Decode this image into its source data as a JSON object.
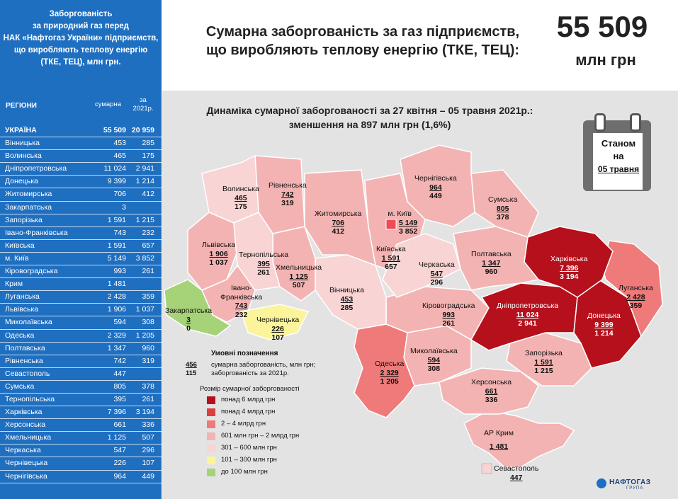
{
  "sidebar": {
    "title_lines": [
      "Заборгованість",
      "за природний газ перед",
      "НАК «Нафтогаз України» підприємств,",
      "що виробляють теплову енергію",
      "(ТКЕ, ТЕЦ), млн грн."
    ],
    "col_region": "РЕГІОНИ",
    "col_total": "сумарна",
    "col_year": [
      "за",
      "2021р."
    ],
    "rows": [
      {
        "region": "УКРАЇНА",
        "total": "55 509",
        "year": "20 959",
        "bold": true
      },
      {
        "region": "Вінницька",
        "total": "453",
        "year": "285"
      },
      {
        "region": "Волинська",
        "total": "465",
        "year": "175"
      },
      {
        "region": "Дніпропетровська",
        "total": "11 024",
        "year": "2 941"
      },
      {
        "region": "Донецька",
        "total": "9 399",
        "year": "1 214"
      },
      {
        "region": "Житомирська",
        "total": "706",
        "year": "412"
      },
      {
        "region": "Закарпатська",
        "total": "3",
        "year": ""
      },
      {
        "region": "Запорізька",
        "total": "1 591",
        "year": "1 215"
      },
      {
        "region": "Івано-Франківська",
        "total": "743",
        "year": "232"
      },
      {
        "region": "Київська",
        "total": "1 591",
        "year": "657"
      },
      {
        "region": "м. Київ",
        "total": "5 149",
        "year": "3 852"
      },
      {
        "region": "Кіровоградська",
        "total": "993",
        "year": "261"
      },
      {
        "region": "Крим",
        "total": "1 481",
        "year": ""
      },
      {
        "region": "Луганська",
        "total": "2 428",
        "year": "359"
      },
      {
        "region": "Львівська",
        "total": "1 906",
        "year": "1 037"
      },
      {
        "region": "Миколаївська",
        "total": "594",
        "year": "308"
      },
      {
        "region": "Одеська",
        "total": "2 329",
        "year": "1 205"
      },
      {
        "region": "Полтавська",
        "total": "1 347",
        "year": "960"
      },
      {
        "region": "Рівненська",
        "total": "742",
        "year": "319"
      },
      {
        "region": "Севастополь",
        "total": "447",
        "year": ""
      },
      {
        "region": "Сумська",
        "total": "805",
        "year": "378"
      },
      {
        "region": "Тернопільська",
        "total": "395",
        "year": "261"
      },
      {
        "region": "Харківська",
        "total": "7 396",
        "year": "3 194"
      },
      {
        "region": "Херсонська",
        "total": "661",
        "year": "336"
      },
      {
        "region": "Хмельницька",
        "total": "1 125",
        "year": "507"
      },
      {
        "region": "Черкаська",
        "total": "547",
        "year": "296"
      },
      {
        "region": "Чернівецька",
        "total": "226",
        "year": "107"
      },
      {
        "region": "Чернігівська",
        "total": "964",
        "year": "449"
      }
    ]
  },
  "header": {
    "title_line1": "Сумарна заборгованість за газ підприємств,",
    "title_line2": "що виробляють теплову енергію (ТКЕ, ТЕЦ):",
    "total_value": "55 509",
    "total_unit": "млн грн"
  },
  "map": {
    "subtitle_line1": "Динаміка сумарної заборгованості за 27 квітня – 05 травня 2021р.:",
    "subtitle_line2": "зменшення на 897 млн грн (1,6%)",
    "calendar": {
      "line1": "Станом",
      "line2": "на",
      "date": "05 травня"
    },
    "labels": [
      {
        "id": "volyn",
        "name": "Волинська",
        "total": "465",
        "year": "175"
      },
      {
        "id": "rivne",
        "name": "Рівненська",
        "total": "742",
        "year": "319"
      },
      {
        "id": "zhytomyr",
        "name": "Житомирська",
        "total": "706",
        "year": "412"
      },
      {
        "id": "kyiv-city",
        "name": "м. Київ",
        "total": "5 149",
        "year": "3 852"
      },
      {
        "id": "chernihiv",
        "name": "Чернігівська",
        "total": "964",
        "year": "449"
      },
      {
        "id": "sumy",
        "name": "Сумська",
        "total": "805",
        "year": "378"
      },
      {
        "id": "lviv",
        "name": "Львівська",
        "total": "1 906",
        "year": "1 037"
      },
      {
        "id": "ternopil",
        "name": "Тернопільська",
        "total": "395",
        "year": "261"
      },
      {
        "id": "khmelnytskyi",
        "name": "Хмельницька",
        "total": "1 125",
        "year": "507"
      },
      {
        "id": "kyiv-obl",
        "name": "Київська",
        "total": "1 591",
        "year": "657"
      },
      {
        "id": "cherkasy",
        "name": "Черкаська",
        "total": "547",
        "year": "296"
      },
      {
        "id": "poltava",
        "name": "Полтавська",
        "total": "1 347",
        "year": "960"
      },
      {
        "id": "kharkiv",
        "name": "Харківська",
        "total": "7 396",
        "year": "3 194"
      },
      {
        "id": "luhansk",
        "name": "Луганська",
        "total": "2 428",
        "year": "359"
      },
      {
        "id": "ivano",
        "name": "Івано-Франківська",
        "total": "743",
        "year": "232"
      },
      {
        "id": "zakarpattia",
        "name": "Закарпатська",
        "total": "3",
        "year": "0"
      },
      {
        "id": "chernivtsi",
        "name": "Чернівецька",
        "total": "226",
        "year": "107"
      },
      {
        "id": "vinnytsia",
        "name": "Вінницька",
        "total": "453",
        "year": "285"
      },
      {
        "id": "kirovohrad",
        "name": "Кіровоградська",
        "total": "993",
        "year": "261"
      },
      {
        "id": "dnipro",
        "name": "Дніпропетровська",
        "total": "11 024",
        "year": "2 941"
      },
      {
        "id": "donetsk",
        "name": "Донецька",
        "total": "9 399",
        "year": "1 214"
      },
      {
        "id": "odesa",
        "name": "Одеська",
        "total": "2 329",
        "year": "1 205"
      },
      {
        "id": "mykolaiv",
        "name": "Миколаївська",
        "total": "594",
        "year": "308"
      },
      {
        "id": "zaporizhzhia",
        "name": "Запорізька",
        "total": "1 591",
        "year": "1 215"
      },
      {
        "id": "kherson",
        "name": "Херсонська",
        "total": "661",
        "year": "336"
      },
      {
        "id": "crimea",
        "name": "АР Крим",
        "total": "1 481",
        "year": ""
      },
      {
        "id": "sevastopol",
        "name": "Севастополь",
        "total": "447",
        "year": ""
      }
    ],
    "colors": {
      "over6": "#b5101c",
      "over4": "#dc3d3d",
      "r2to4": "#ef7a7a",
      "r601": "#f4b3b3",
      "r301": "#f8d4d4",
      "r101": "#fbf49a",
      "under100": "#a6d278",
      "sea": "#e3e3e3",
      "sidebar": "#1f6fc1"
    }
  },
  "legend": {
    "title": "Умовні позначення",
    "example_total": "456",
    "example_year": "115",
    "example_total_desc": "сумарна заборгованість, млн грн;",
    "example_year_desc": "заборгованість за 2021р.",
    "size_title": "Розмір сумарної заборгованості",
    "items": [
      {
        "label": "понад 6 млрд грн",
        "color": "#b5101c"
      },
      {
        "label": "понад 4 млрд грн",
        "color": "#dc3d3d"
      },
      {
        "label": "2 – 4 млрд грн",
        "color": "#ef7a7a"
      },
      {
        "label": "601 млн грн – 2 млрд грн",
        "color": "#f4b3b3"
      },
      {
        "label": "301 – 600 млн грн",
        "color": "#f8d4d4"
      },
      {
        "label": "101 – 300 млн грн",
        "color": "#fbf49a"
      },
      {
        "label": "до 100 млн грн",
        "color": "#a6d278"
      }
    ]
  },
  "logo": {
    "name": "НАФТОГАЗ",
    "sub": "ГРУПА"
  }
}
